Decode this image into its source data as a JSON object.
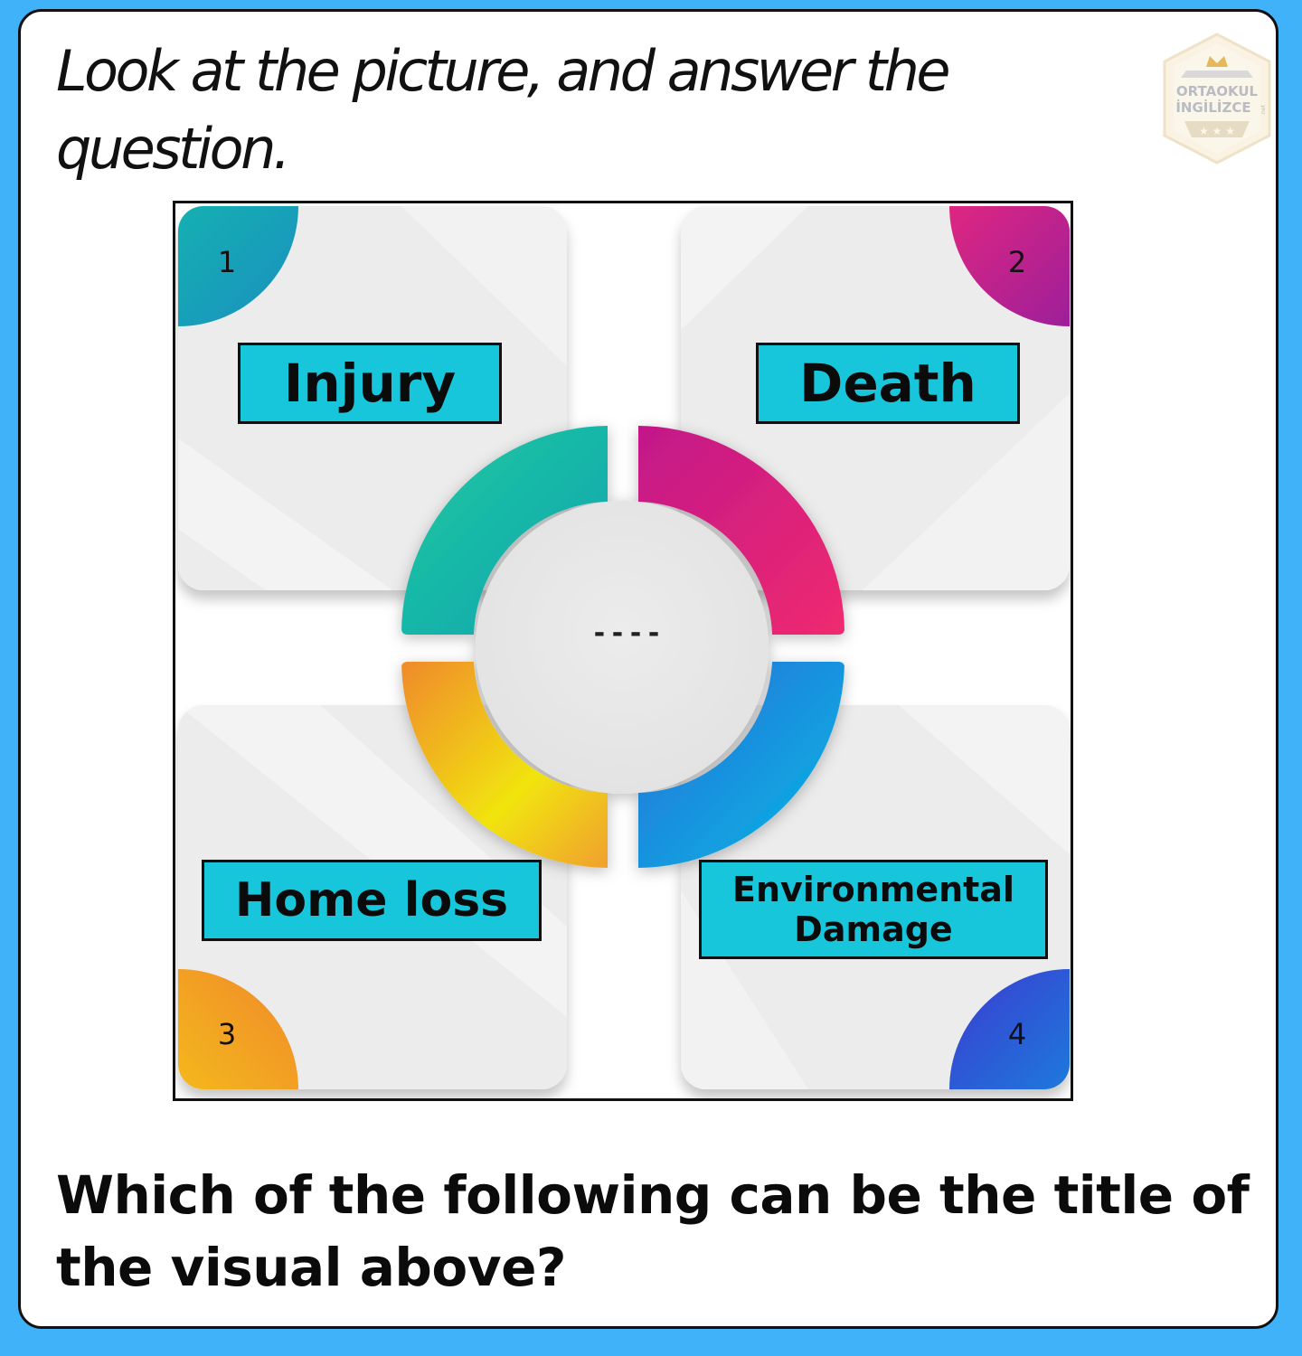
{
  "instruction": "Look at the picture, and answer the question.",
  "logo": {
    "line1": "ORTAOKUL",
    "line2": "İNGİLİZCE",
    "suffix": ".net"
  },
  "figure": {
    "center_text": "----",
    "items": [
      {
        "number": "1",
        "label": "Injury"
      },
      {
        "number": "2",
        "label": "Death"
      },
      {
        "number": "3",
        "label": "Home loss"
      },
      {
        "number": "4",
        "label": "Environmental\nDamage"
      }
    ]
  },
  "question": "Which of the following can be the title of the visual above?",
  "colors": {
    "background": "#3fb2fa",
    "label_fill": "#18c6dc",
    "segment_teal": "#14b8a6",
    "segment_magenta": "#e0217a",
    "segment_yellow": "#f1d90f",
    "segment_blue": "#1a8fd8"
  }
}
